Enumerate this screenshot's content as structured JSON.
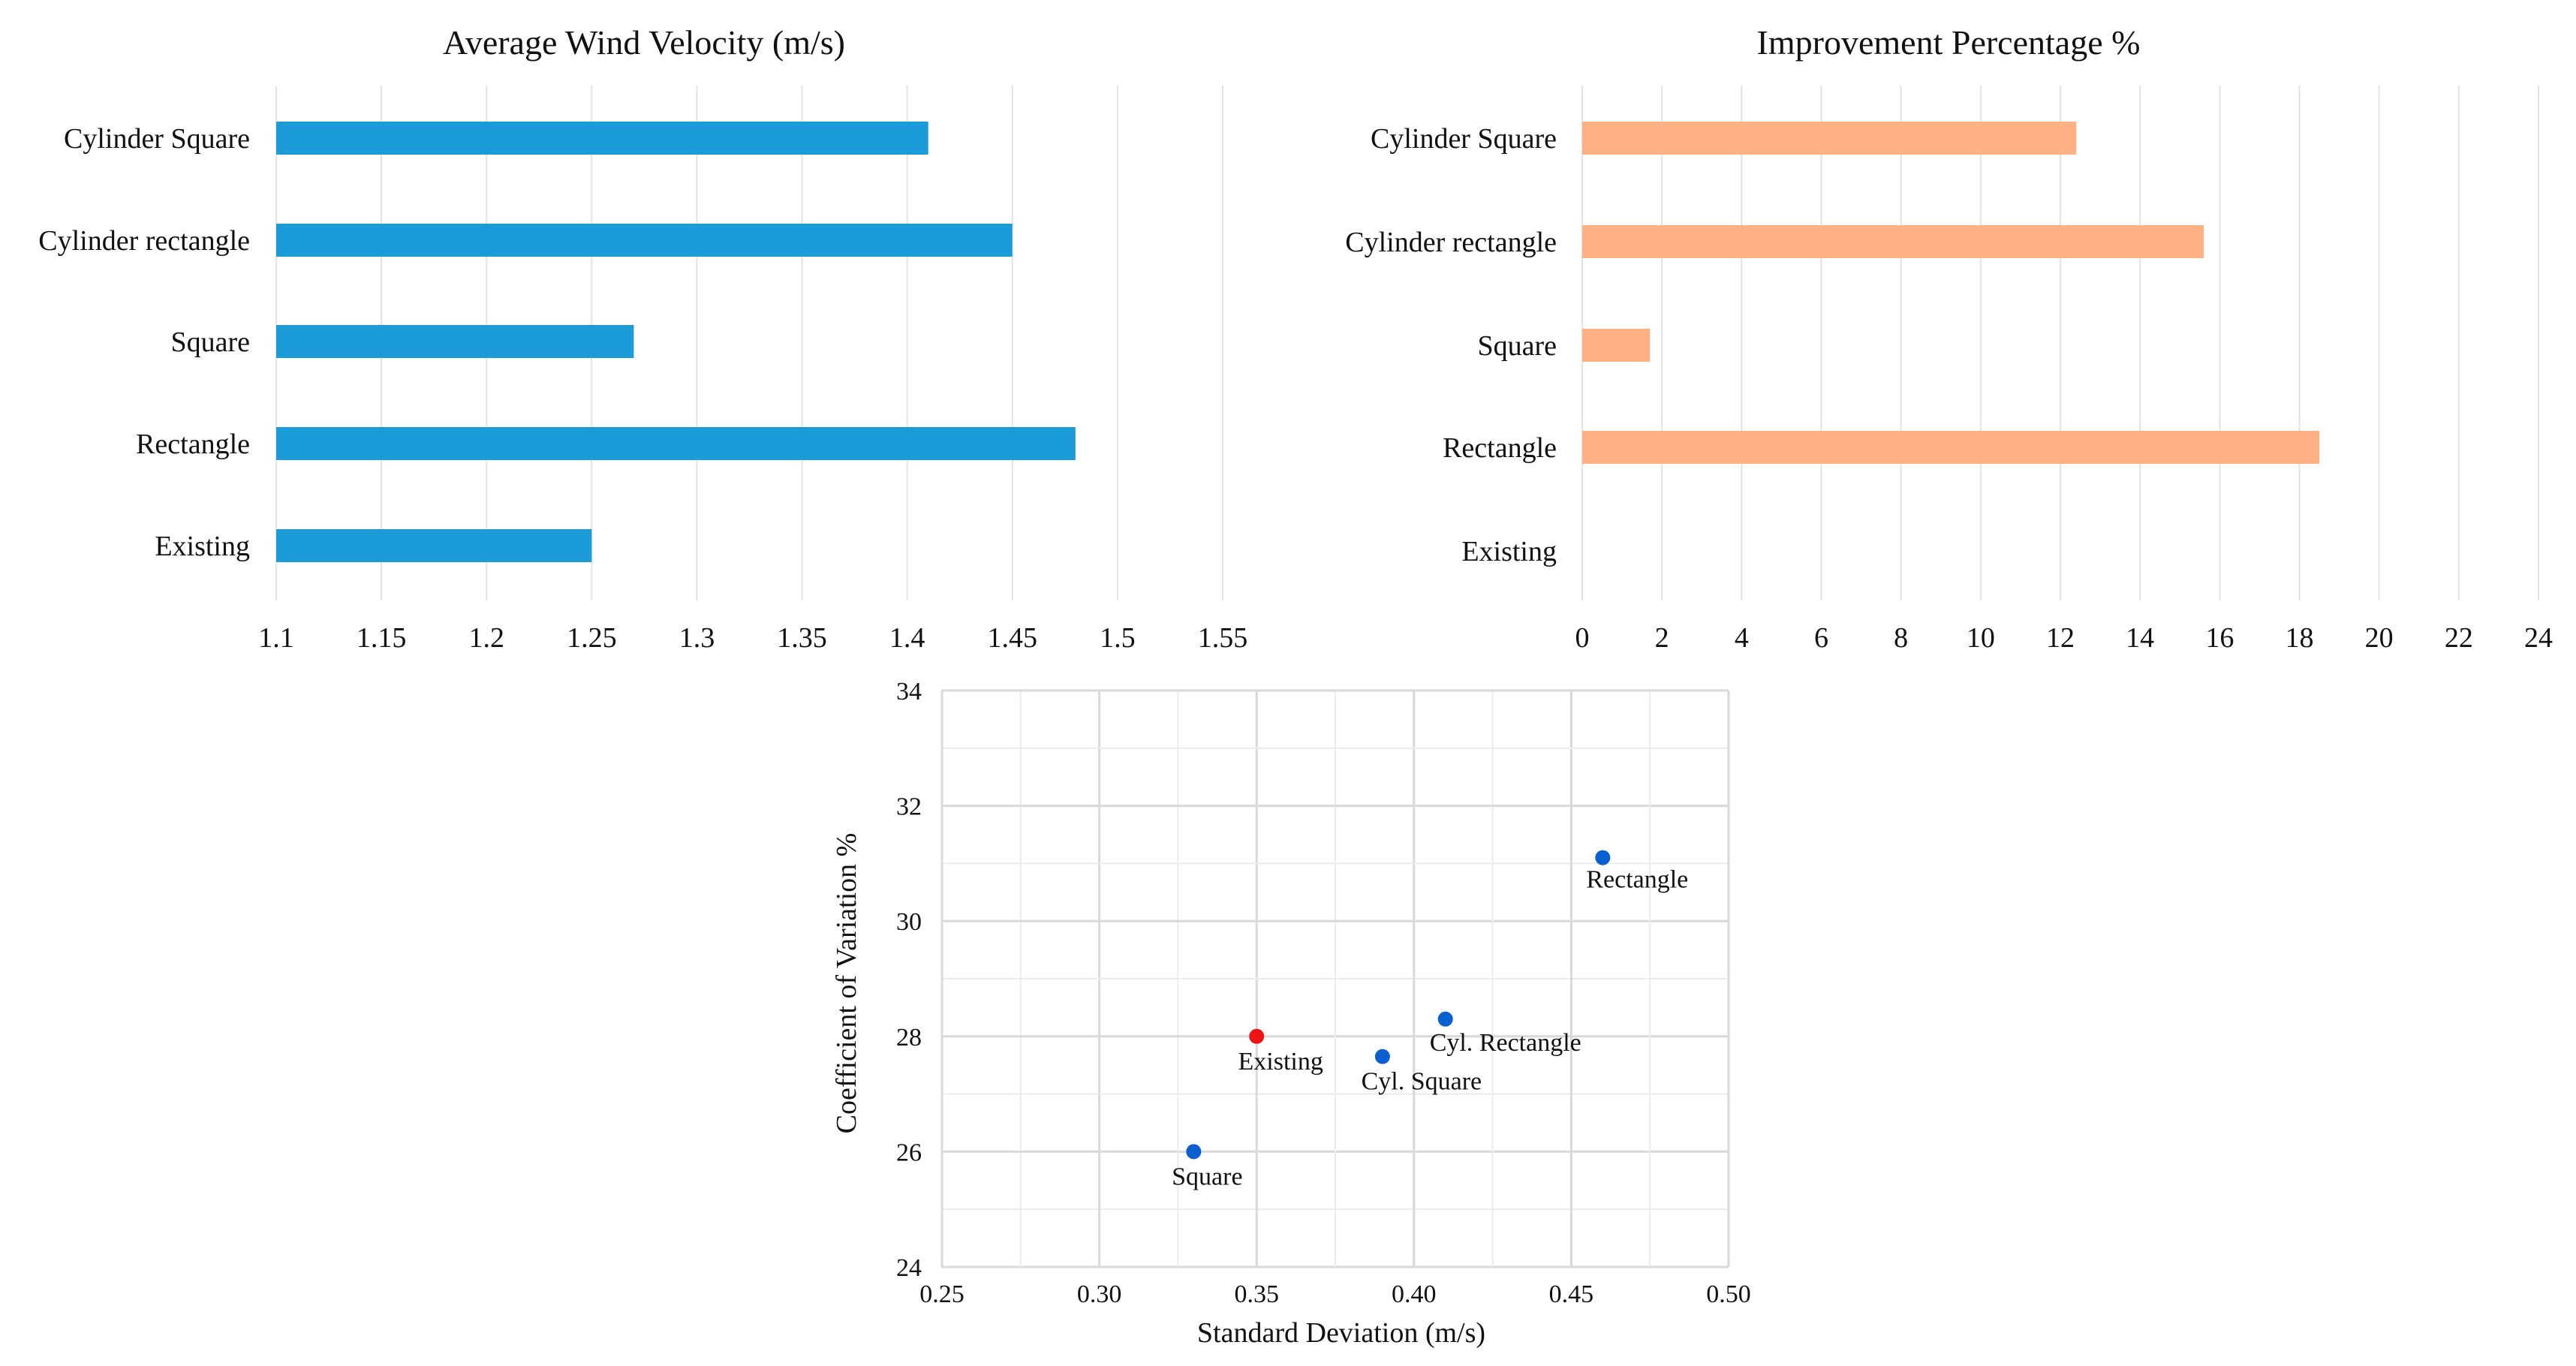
{
  "chart_data": [
    {
      "type": "bar",
      "orientation": "horizontal",
      "title": "Average Wind Velocity (m/s)",
      "categories": [
        "Cylinder Square",
        "Cylinder rectangle",
        "Square",
        "Rectangle",
        "Existing"
      ],
      "values": [
        1.41,
        1.45,
        1.27,
        1.48,
        1.25
      ],
      "xlim": [
        1.1,
        1.55
      ],
      "xticks": [
        "1.1",
        "1.15",
        "1.2",
        "1.25",
        "1.3",
        "1.35",
        "1.4",
        "1.45",
        "1.5",
        "1.55"
      ],
      "grid": true,
      "color": "#1b9bd7"
    },
    {
      "type": "bar",
      "orientation": "horizontal",
      "title": "Improvement Percentage %",
      "categories": [
        "Cylinder Square",
        "Cylinder rectangle",
        "Square",
        "Rectangle",
        "Existing"
      ],
      "values": [
        12.4,
        15.6,
        1.7,
        18.5,
        0
      ],
      "xlim": [
        0,
        24
      ],
      "xticks": [
        "0",
        "2",
        "4",
        "6",
        "8",
        "10",
        "12",
        "14",
        "16",
        "18",
        "20",
        "22",
        "24"
      ],
      "grid": true,
      "color": "#ffb183"
    },
    {
      "type": "scatter",
      "xlabel": "Standard Deviation (m/s)",
      "ylabel": "Coefficient of Variation %",
      "xlim": [
        0.25,
        0.5
      ],
      "ylim": [
        24,
        34
      ],
      "xticks": [
        "0.25",
        "0.30",
        "0.35",
        "0.40",
        "0.45",
        "0.50"
      ],
      "yticks": [
        "24",
        "26",
        "28",
        "30",
        "32",
        "34"
      ],
      "grid": true,
      "points": [
        {
          "label": "Rectangle",
          "x": 0.46,
          "y": 31.1,
          "color": "#0a5fd1"
        },
        {
          "label": "Cyl. Rectangle",
          "x": 0.41,
          "y": 28.3,
          "color": "#0a5fd1"
        },
        {
          "label": "Cyl. Square",
          "x": 0.39,
          "y": 27.65,
          "color": "#0a5fd1"
        },
        {
          "label": "Existing",
          "x": 0.35,
          "y": 28.0,
          "color": "#f01414"
        },
        {
          "label": "Square",
          "x": 0.33,
          "y": 26.0,
          "color": "#0a5fd1"
        }
      ]
    }
  ]
}
